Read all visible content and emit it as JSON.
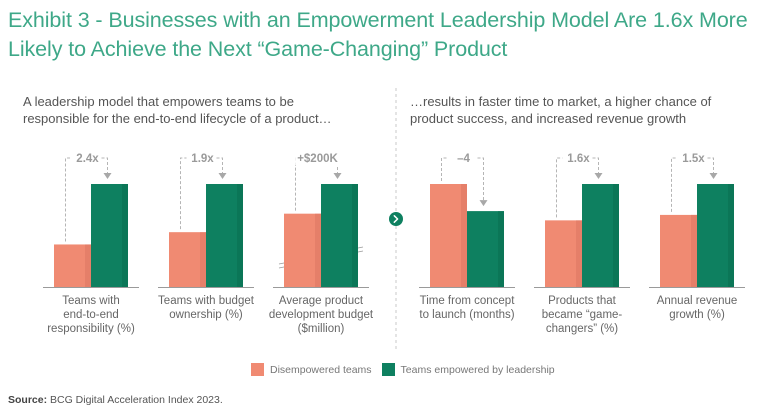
{
  "title": "Exhibit 3 - Businesses with an Empowerment Leadership Model Are 1.6x More Likely to Achieve the Next “Game-Changing” Product",
  "subtitles": {
    "left": "A leadership model that empowers teams to be responsible for the end-to-end lifecycle of a product…",
    "right": "…results in faster time to market, a higher chance of product success, and increased revenue growth"
  },
  "divider_icon": "chevron-right-icon",
  "legend": [
    {
      "label": "Disempowered teams",
      "color": "#f08a72"
    },
    {
      "label": "Teams empowered by leadership",
      "color": "#0e8060"
    }
  ],
  "source": {
    "label": "Source:",
    "text": "BCG Digital Acceleration Index 2023."
  },
  "colors": {
    "disempowered": "#f08a72",
    "disempowered_shade": "#dc7763",
    "empowered": "#0e8060",
    "empowered_shade": "#0a6d51",
    "title": "#3ea888",
    "annotation": "#999999"
  },
  "chart_data": {
    "type": "bar",
    "title": "Exhibit 3 - Businesses with an Empowerment Leadership Model Are 1.6x More Likely to Achieve the Next “Game-Changing” Product",
    "series_names": [
      "Disempowered teams",
      "Teams empowered by leadership"
    ],
    "legend_position": "bottom",
    "grid": false,
    "groups": [
      {
        "category": "Teams with end-to-end responsibility (%)",
        "values": [
          19,
          46
        ],
        "labels": [
          "19",
          "46"
        ],
        "annotation": "2.4x",
        "axis_break": false
      },
      {
        "category": "Teams with budget ownership (%)",
        "values": [
          33,
          62
        ],
        "labels": [
          "33",
          "62"
        ],
        "annotation": "1.9x",
        "axis_break": false
      },
      {
        "category": "Average product development budget ($million)",
        "values": [
          2.3,
          2.5
        ],
        "labels": [
          "2.3",
          "2.5"
        ],
        "annotation": "+$200K",
        "axis_break": true
      },
      {
        "category": "Time from concept to launch (months)",
        "values": [
          19,
          14
        ],
        "labels": [
          "19",
          "14"
        ],
        "annotation": "–4",
        "axis_break": false
      },
      {
        "category": "Products that became “game-changers” (%)",
        "values": [
          22,
          34
        ],
        "labels": [
          "22",
          "34"
        ],
        "annotation": "1.6x",
        "axis_break": false
      },
      {
        "category": "Annual revenue growth (%)",
        "values": [
          7,
          10
        ],
        "labels": [
          "7",
          "10"
        ],
        "annotation": "1.5x",
        "axis_break": false
      }
    ],
    "category_lines": [
      [
        "Teams with",
        "end-to-end",
        "responsibility (%)"
      ],
      [
        "Teams with budget",
        "ownership (%)"
      ],
      [
        "Average product",
        "development budget",
        "($million)"
      ],
      [
        "Time from concept",
        "to launch (months)"
      ],
      [
        "Products that",
        "became “game-",
        "changers” (%)"
      ],
      [
        "Annual revenue",
        "growth (%)"
      ]
    ]
  }
}
